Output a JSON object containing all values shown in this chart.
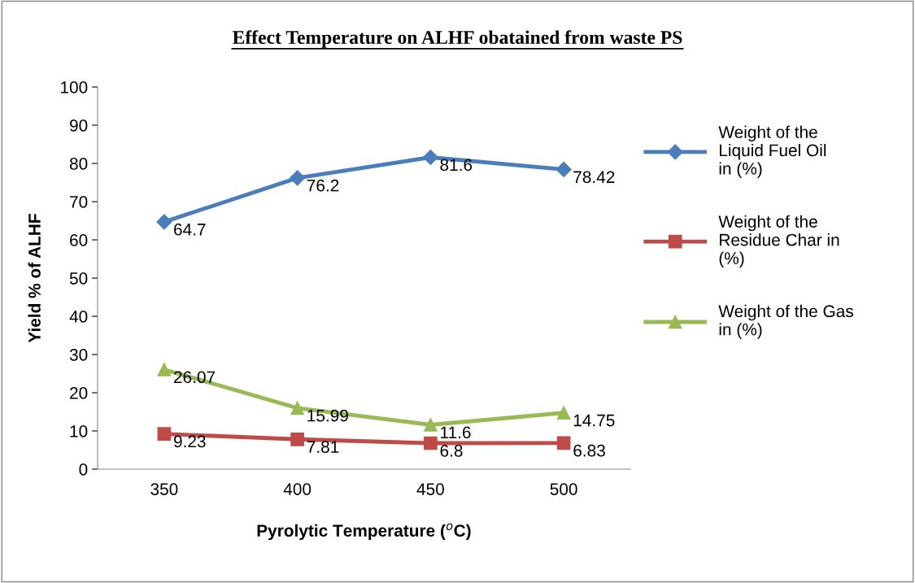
{
  "chart_data": {
    "type": "line",
    "title": "Effect Temperature on ALHF obatained from waste PS",
    "xlabel": "Pyrolytic Temperature ($^{o}$C)",
    "ylabel": "Yield % of ALHF",
    "categories": [
      "350",
      "400",
      "450",
      "500"
    ],
    "series": [
      {
        "name": "Weight of the Liquid Fuel Oil in (%)",
        "color": "#4a7ebb",
        "marker": "diamond",
        "values": [
          64.7,
          76.2,
          81.6,
          78.42
        ]
      },
      {
        "name": "Weight of the Residue Char in (%)",
        "color": "#be4b48",
        "marker": "square",
        "values": [
          9.23,
          7.81,
          6.8,
          6.83
        ]
      },
      {
        "name": "Weight of the Gas in (%)",
        "color": "#98b954",
        "marker": "triangle",
        "values": [
          26.07,
          15.99,
          11.6,
          14.75
        ]
      }
    ],
    "ylim": [
      0,
      100
    ],
    "yticks": [
      0,
      10,
      20,
      30,
      40,
      50,
      60,
      70,
      80,
      90,
      100
    ],
    "data_labels": true,
    "legend": "right",
    "grid": false,
    "line_style": "solid"
  }
}
